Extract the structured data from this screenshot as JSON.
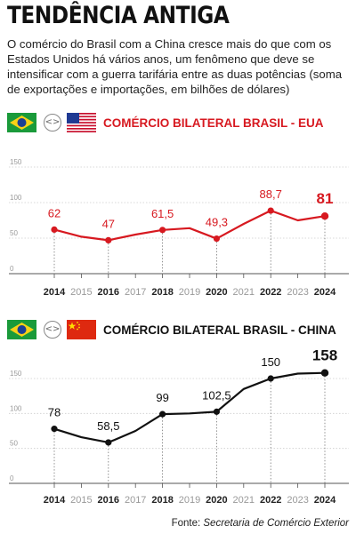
{
  "header": {
    "title": "TENDÊNCIA ANTIGA",
    "subtitle": "O comércio do Brasil com a China cresce mais do que com os Estados Unidos há vários anos, um fenômeno que deve se intensificar com a guerra tarifária entre as duas potências (soma de exportações e importações, em bilhões de dólares)"
  },
  "icons": {
    "flag_brazil": "brazil-flag-icon",
    "flag_usa": "usa-flag-icon",
    "flag_china": "china-flag-icon",
    "compare": "compare-arrows-icon"
  },
  "colors": {
    "usa_series": "#d71920",
    "china_series": "#111111",
    "grid": "#cccccc",
    "axis_label": "#999999"
  },
  "chart_data": [
    {
      "type": "line",
      "title": "COMÉRCIO BILATERAL BRASIL - EUA",
      "x": [
        "2014",
        "2015",
        "2016",
        "2017",
        "2018",
        "2019",
        "2020",
        "2021",
        "2022",
        "2023",
        "2024"
      ],
      "values": [
        62,
        52,
        47,
        55,
        61.5,
        64,
        49.3,
        70,
        88.7,
        75,
        81
      ],
      "data_labels": [
        "62",
        "",
        "47",
        "",
        "61,5",
        "",
        "49,3",
        "",
        "88,7",
        "",
        "81"
      ],
      "yticks": [
        "0",
        "50",
        "100",
        "150"
      ],
      "ylim": [
        0,
        150
      ],
      "color": "#d71920",
      "grid": true
    },
    {
      "type": "line",
      "title": "COMÉRCIO BILATERAL BRASIL - CHINA",
      "x": [
        "2014",
        "2015",
        "2016",
        "2017",
        "2018",
        "2019",
        "2020",
        "2021",
        "2022",
        "2023",
        "2024"
      ],
      "values": [
        78,
        66,
        58.5,
        75,
        99,
        100,
        102.5,
        135,
        150,
        157,
        158
      ],
      "data_labels": [
        "78",
        "",
        "58,5",
        "",
        "99",
        "",
        "102,5",
        "",
        "150",
        "",
        "158"
      ],
      "yticks": [
        "0",
        "50",
        "100",
        "150"
      ],
      "ylim": [
        0,
        150
      ],
      "color": "#111111",
      "grid": true
    }
  ],
  "footer": {
    "source_prefix": "Fonte:",
    "source_name": "Secretaria de Comércio Exterior"
  }
}
